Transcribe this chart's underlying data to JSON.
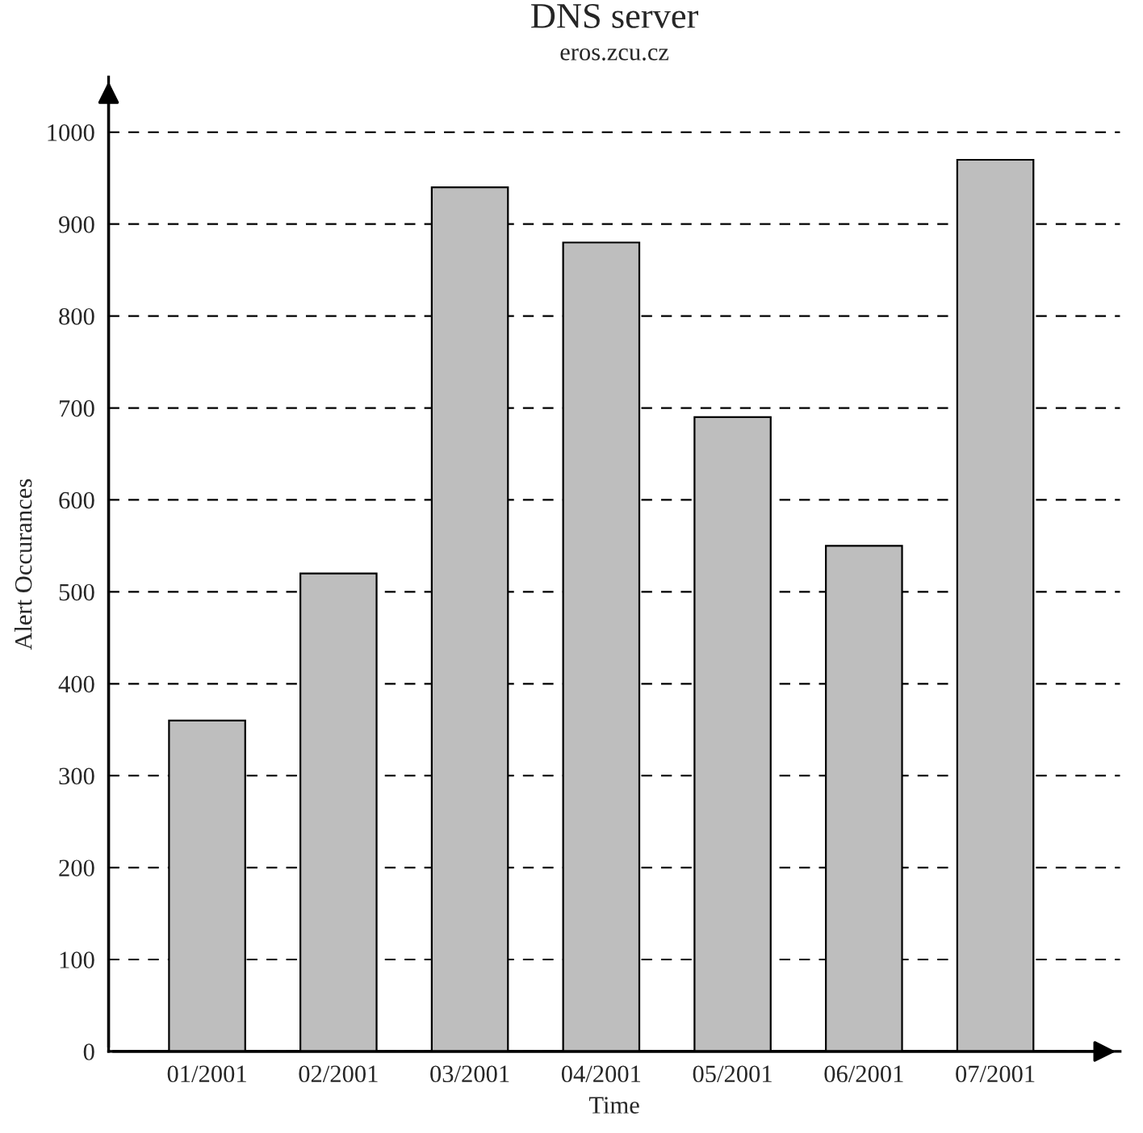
{
  "chart_data": {
    "type": "bar",
    "title": "DNS server",
    "subtitle": "eros.zcu.cz",
    "xlabel": "Time",
    "ylabel": "Alert Occurances",
    "categories": [
      "01/2001",
      "02/2001",
      "03/2001",
      "04/2001",
      "05/2001",
      "06/2001",
      "07/2001"
    ],
    "values": [
      360,
      520,
      940,
      880,
      690,
      550,
      970
    ],
    "color": "#bebebe",
    "ylim": [
      0,
      1060
    ],
    "yticks": [
      0,
      100,
      200,
      300,
      400,
      500,
      600,
      700,
      800,
      900,
      1000
    ],
    "grid": "y",
    "legend": false
  }
}
